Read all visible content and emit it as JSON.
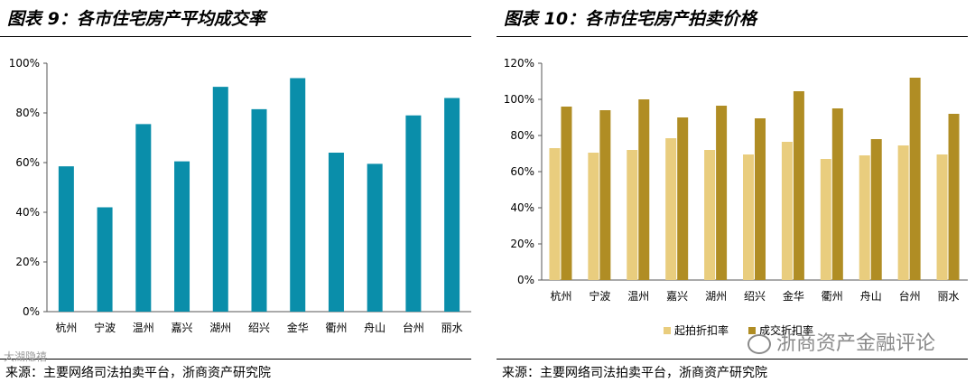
{
  "left": {
    "title": "图表 9：各市住宅房产平均成交率",
    "source": "来源：主要网络司法拍卖平台，浙商资产研究院",
    "chart_data": {
      "type": "bar",
      "title": "图表 9：各市住宅房产平均成交率",
      "categories": [
        "杭州",
        "宁波",
        "温州",
        "嘉兴",
        "湖州",
        "绍兴",
        "金华",
        "衢州",
        "舟山",
        "台州",
        "丽水"
      ],
      "series": [
        {
          "name": "平均成交率",
          "color": "#0a8eaa",
          "values": [
            58.5,
            42,
            75.5,
            60.5,
            90.5,
            81.5,
            94,
            64,
            59.5,
            79,
            86
          ]
        }
      ],
      "ylim": [
        0,
        100
      ],
      "yticks": [
        0,
        20,
        40,
        60,
        80,
        100
      ],
      "tick_suffix": "%",
      "xlabel": "",
      "ylabel": "",
      "grid": false
    }
  },
  "right": {
    "title": "图表 10：各市住宅房产拍卖价格",
    "source": "来源：主要网络司法拍卖平台，浙商资产研究院",
    "chart_data": {
      "type": "bar",
      "title": "图表 10：各市住宅房产拍卖价格",
      "categories": [
        "杭州",
        "宁波",
        "温州",
        "嘉兴",
        "湖州",
        "绍兴",
        "金华",
        "衢州",
        "舟山",
        "台州",
        "丽水"
      ],
      "series": [
        {
          "name": "起拍折扣率",
          "color": "#e9cd7e",
          "values": [
            73,
            70.5,
            72,
            78.5,
            72,
            69.5,
            76.5,
            67,
            69,
            74.5,
            69.5
          ]
        },
        {
          "name": "成交折扣率",
          "color": "#b08d24",
          "values": [
            96,
            94,
            100,
            90,
            96.5,
            89.5,
            104.5,
            95,
            78,
            112,
            92
          ]
        }
      ],
      "ylim": [
        0,
        120
      ],
      "yticks": [
        0,
        20,
        40,
        60,
        80,
        100,
        120
      ],
      "tick_suffix": "%",
      "legend_labels": [
        "起拍折扣率",
        "成交折扣率"
      ],
      "legend_position": "bottom",
      "xlabel": "",
      "ylabel": "",
      "grid": false
    }
  },
  "watermark": {
    "text": "浙商资产金融评论",
    "small_text": "大湖隐禧",
    "color": "#8a8a8a"
  }
}
